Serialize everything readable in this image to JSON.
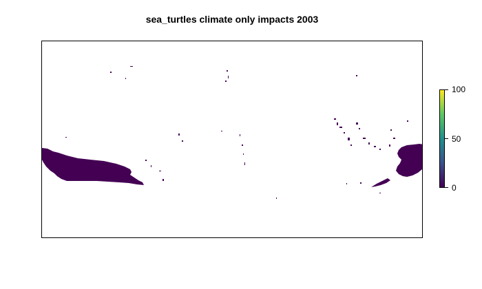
{
  "map": {
    "title": "sea_turtles climate only impacts 2003",
    "fill_color": "#440154"
  },
  "legend": {
    "ticks": [
      "100",
      "50",
      "0"
    ],
    "gradient": [
      "#440154",
      "#3b528b",
      "#21908c",
      "#5dc863",
      "#fde725"
    ]
  }
}
